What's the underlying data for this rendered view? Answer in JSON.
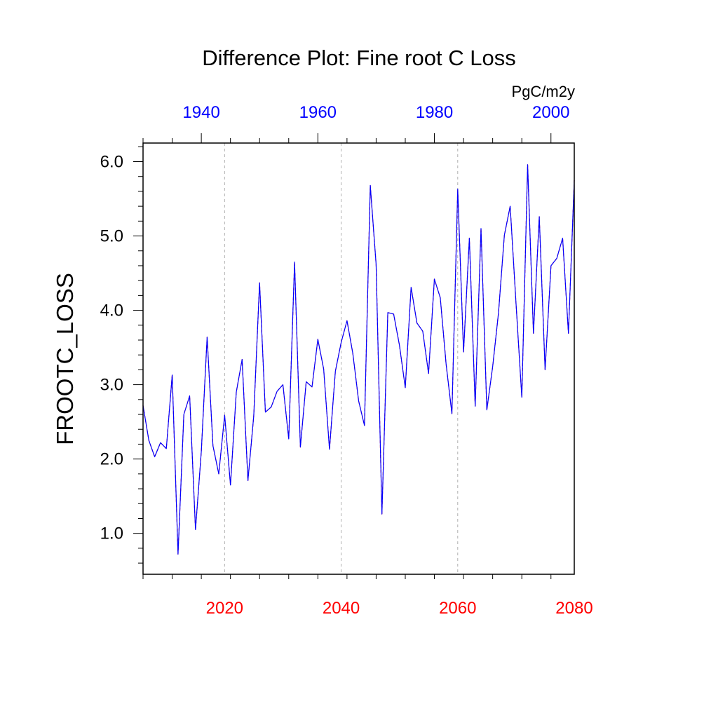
{
  "chart_data": {
    "type": "line",
    "title": "Difference Plot: Fine root C Loss",
    "ylabel": "FROOTC_LOSS",
    "units": "PgC/m2y",
    "xlabel": "",
    "ylim": [
      0.45,
      6.25
    ],
    "grid": "vertical dashed gridlines at bottom-axis major ticks",
    "bottom_axis": {
      "range": [
        2006,
        2080
      ],
      "tick_labels": [
        "2020",
        "2040",
        "2060",
        "2080"
      ],
      "tick_values": [
        2020,
        2040,
        2060,
        2080
      ],
      "color": "#ff0000"
    },
    "top_axis": {
      "range": [
        1930,
        2004
      ],
      "tick_labels": [
        "1940",
        "1960",
        "1980",
        "2000"
      ],
      "tick_values": [
        1940,
        1960,
        1980,
        2000
      ],
      "color": "#0000ff"
    },
    "y_tick_labels": [
      "1.0",
      "2.0",
      "3.0",
      "4.0",
      "5.0",
      "6.0"
    ],
    "y_tick_values": [
      1,
      2,
      3,
      4,
      5,
      6
    ],
    "x": [
      2006,
      2007,
      2008,
      2009,
      2010,
      2011,
      2012,
      2013,
      2014,
      2015,
      2016,
      2017,
      2018,
      2019,
      2020,
      2021,
      2022,
      2023,
      2024,
      2025,
      2026,
      2027,
      2028,
      2029,
      2030,
      2031,
      2032,
      2033,
      2034,
      2035,
      2036,
      2037,
      2038,
      2039,
      2040,
      2041,
      2042,
      2043,
      2044,
      2045,
      2046,
      2047,
      2048,
      2049,
      2050,
      2051,
      2052,
      2053,
      2054,
      2055,
      2056,
      2057,
      2058,
      2059,
      2060,
      2061,
      2062,
      2063,
      2064,
      2065,
      2066,
      2067,
      2068,
      2069,
      2070,
      2071,
      2072,
      2073,
      2074,
      2075,
      2076,
      2077,
      2078,
      2079,
      2080
    ],
    "series": [
      {
        "color": "#ff0000",
        "dash": "dashed",
        "values": [
          2.72,
          2.25,
          2.03,
          2.22,
          2.14,
          3.13,
          0.72,
          2.6,
          2.85,
          1.05,
          2.1,
          3.64,
          2.18,
          1.8,
          2.59,
          1.65,
          2.9,
          3.34,
          1.71,
          2.58,
          4.37,
          2.63,
          2.7,
          2.91,
          3.0,
          2.27,
          4.65,
          2.16,
          3.04,
          2.97,
          3.61,
          3.21,
          2.13,
          3.18,
          3.57,
          3.86,
          3.42,
          2.78,
          2.45,
          5.68,
          4.62,
          1.26,
          3.97,
          3.95,
          3.53,
          2.96,
          4.31,
          3.83,
          3.72,
          3.15,
          4.42,
          4.17,
          3.28,
          2.61,
          5.63,
          3.44,
          4.97,
          2.71,
          5.1,
          2.66,
          3.24,
          3.97,
          5.01,
          5.4,
          4.1,
          2.83,
          5.96,
          3.69,
          5.26,
          3.2,
          4.6,
          4.7,
          4.97,
          3.69,
          5.75
        ]
      },
      {
        "color": "#0000ff",
        "dash": "solid",
        "values": [
          2.72,
          2.25,
          2.03,
          2.22,
          2.14,
          3.13,
          0.72,
          2.6,
          2.85,
          1.05,
          2.1,
          3.64,
          2.18,
          1.8,
          2.59,
          1.65,
          2.9,
          3.34,
          1.71,
          2.58,
          4.37,
          2.63,
          2.7,
          2.91,
          3.0,
          2.27,
          4.65,
          2.16,
          3.04,
          2.97,
          3.61,
          3.21,
          2.13,
          3.18,
          3.57,
          3.86,
          3.42,
          2.78,
          2.45,
          5.68,
          4.62,
          1.26,
          3.97,
          3.95,
          3.53,
          2.96,
          4.31,
          3.83,
          3.72,
          3.15,
          4.42,
          4.17,
          3.28,
          2.61,
          5.63,
          3.44,
          4.97,
          2.71,
          5.1,
          2.66,
          3.24,
          3.97,
          5.01,
          5.4,
          4.1,
          2.83,
          5.96,
          3.69,
          5.26,
          3.2,
          4.6,
          4.7,
          4.97,
          3.69,
          5.75
        ]
      }
    ]
  }
}
